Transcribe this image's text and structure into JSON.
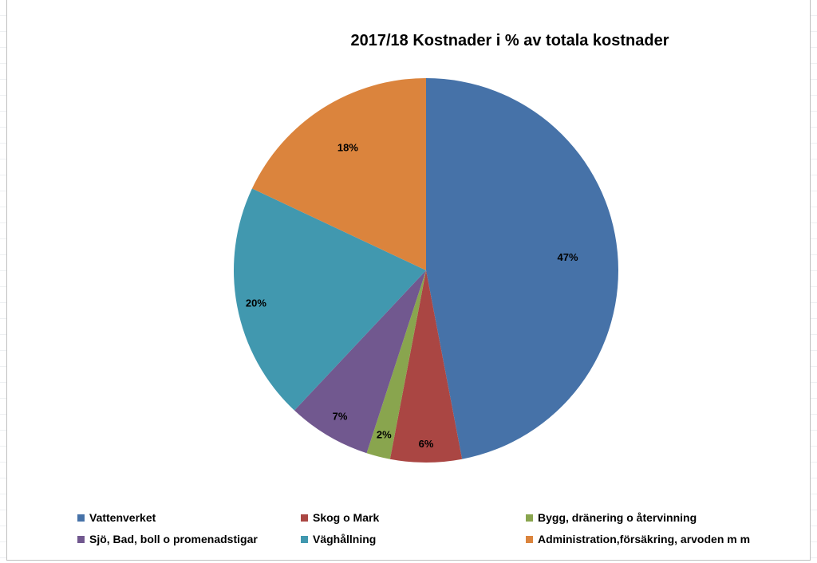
{
  "chart_data": {
    "type": "pie",
    "title": "2017/18 Kostnader  i % av totala kostnader",
    "slices": [
      {
        "label": "Vattenverket",
        "value": 47,
        "display": "47%",
        "color": "#4672a8"
      },
      {
        "label": "Skog o Mark",
        "value": 6,
        "display": "6%",
        "color": "#aa4643"
      },
      {
        "label": "Bygg, dränering o återvinning",
        "value": 2,
        "display": "2%",
        "color": "#89a54e"
      },
      {
        "label": "Sjö, Bad, boll o promenadstigar",
        "value": 7,
        "display": "7%",
        "color": "#71588f"
      },
      {
        "label": "Väghållning",
        "value": 20,
        "display": "20%",
        "color": "#4198af"
      },
      {
        "label": "Administration,försäkring, arvoden m m",
        "value": 18,
        "display": "18%",
        "color": "#db843d"
      }
    ],
    "legend_position": "bottom"
  }
}
